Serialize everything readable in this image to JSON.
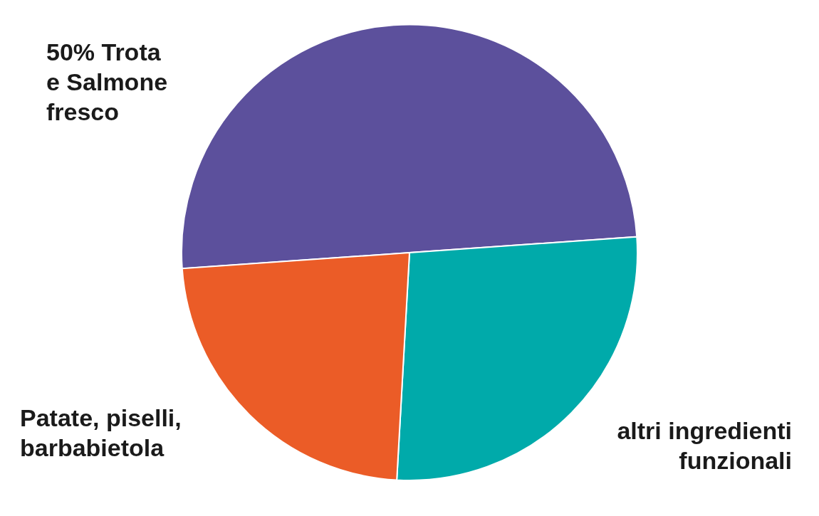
{
  "chart_data": {
    "type": "pie",
    "categories": [
      "50% Trota\ne Salmone\nfresco",
      "altri ingredienti\nfunzionali",
      "Patate, piselli,\nbarbabietola"
    ],
    "values": [
      50,
      27,
      23
    ],
    "colors": [
      "#5c509c",
      "#00aaaa",
      "#eb5c27"
    ]
  }
}
